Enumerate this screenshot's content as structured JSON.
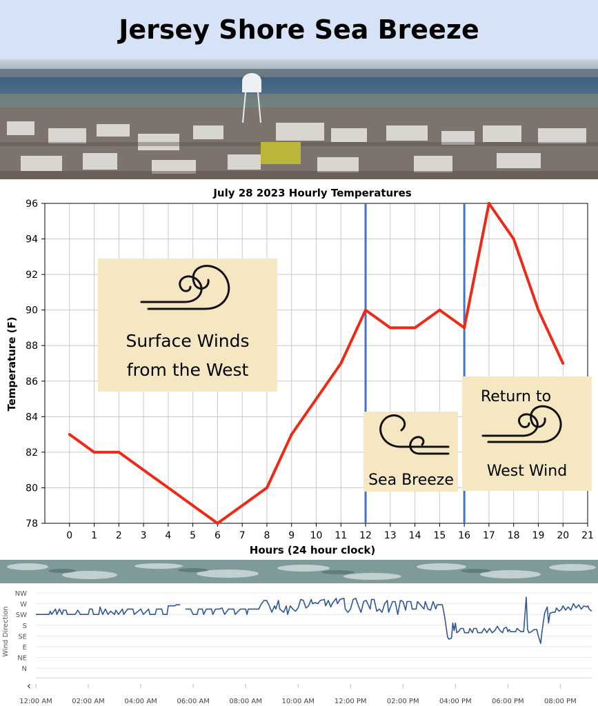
{
  "header": {
    "title": "Jersey Shore Sea Breeze"
  },
  "photo": {
    "description_icon": "town-water-tower-photo"
  },
  "chart_data": [
    {
      "type": "line",
      "title": "July 28 2023 Hourly Temperatures",
      "xlabel": "Hours (24 hour clock)",
      "ylabel": "Temperature (F)",
      "xlim": [
        -1,
        21
      ],
      "ylim": [
        78,
        96
      ],
      "xticks": [
        0,
        1,
        2,
        3,
        4,
        5,
        6,
        7,
        8,
        9,
        10,
        11,
        12,
        13,
        14,
        15,
        16,
        17,
        18,
        19,
        20,
        21
      ],
      "yticks": [
        78,
        80,
        82,
        84,
        86,
        88,
        90,
        92,
        94,
        96
      ],
      "grid": true,
      "series": [
        {
          "color": "#ee2a16",
          "x": [
            0,
            1,
            2,
            3,
            4,
            5,
            6,
            7,
            8,
            9,
            10,
            11,
            12,
            13,
            14,
            15,
            16,
            17,
            18,
            19,
            20
          ],
          "y": [
            83,
            82,
            82,
            81,
            80,
            79,
            78,
            79,
            80,
            83,
            85,
            87,
            90,
            89,
            89,
            90,
            89,
            96,
            94,
            90,
            87
          ]
        }
      ],
      "vlines": [
        {
          "x": 12,
          "color": "#4472c4"
        },
        {
          "x": 16,
          "color": "#4472c4"
        }
      ],
      "annotations": [
        {
          "text": "Surface Winds",
          "panel": "west"
        },
        {
          "text": "from the West",
          "panel": "west"
        },
        {
          "text": "Sea Breeze",
          "panel": "sea"
        },
        {
          "text": "Return to",
          "panel": "return"
        },
        {
          "text": "West Wind",
          "panel": "return"
        }
      ]
    },
    {
      "type": "line",
      "ylabel": "Wind Direction",
      "yticks": [
        "NW",
        "W",
        "SW",
        "S",
        "SE",
        "E",
        "NE",
        "N"
      ],
      "xticks": [
        "12:00 AM",
        "02:00 AM",
        "04:00 AM",
        "06:00 AM",
        "08:00 AM",
        "10:00 AM",
        "12:00 PM",
        "02:00 PM",
        "04:00 PM",
        "06:00 PM",
        "08:00 PM"
      ],
      "xlim_hours": [
        0,
        21.2
      ],
      "color": "#2e5597",
      "segments": [
        [
          [
            0,
            2.0
          ],
          [
            0.5,
            2.0
          ],
          [
            0.55,
            2.3
          ],
          [
            0.6,
            2.0
          ],
          [
            0.75,
            2.5
          ],
          [
            0.8,
            2.0
          ],
          [
            0.9,
            2.5
          ],
          [
            1.0,
            2.0
          ],
          [
            1.05,
            2.4
          ],
          [
            1.15,
            2.4
          ],
          [
            1.2,
            2.0
          ],
          [
            1.5,
            2.0
          ],
          [
            1.6,
            2.4
          ],
          [
            1.7,
            2.0
          ],
          [
            2.0,
            2.0
          ],
          [
            2.05,
            2.5
          ],
          [
            2.15,
            2.5
          ],
          [
            2.2,
            2.0
          ],
          [
            2.4,
            2.0
          ],
          [
            2.45,
            2.7
          ],
          [
            2.55,
            2.0
          ],
          [
            2.65,
            2.5
          ],
          [
            2.75,
            2.0
          ],
          [
            2.85,
            2.3
          ],
          [
            3.0,
            2.0
          ],
          [
            3.05,
            2.4
          ],
          [
            3.15,
            2.0
          ],
          [
            3.3,
            2.5
          ],
          [
            3.35,
            2.0
          ],
          [
            3.5,
            2.5
          ],
          [
            3.7,
            2.5
          ],
          [
            3.75,
            2.0
          ],
          [
            4.0,
            2.5
          ],
          [
            4.1,
            2.0
          ],
          [
            4.3,
            2.5
          ],
          [
            4.35,
            2.0
          ],
          [
            4.55,
            2.0
          ],
          [
            4.6,
            2.5
          ],
          [
            4.8,
            2.5
          ],
          [
            4.85,
            2.0
          ],
          [
            5.0,
            2.0
          ],
          [
            5.05,
            2.8
          ],
          [
            5.3,
            2.8
          ],
          [
            5.35,
            2.9
          ],
          [
            5.5,
            2.9
          ]
        ],
        [
          [
            5.7,
            2.5
          ],
          [
            5.9,
            2.5
          ],
          [
            6.0,
            2.0
          ],
          [
            6.15,
            2.0
          ],
          [
            6.2,
            2.5
          ],
          [
            6.35,
            2.5
          ],
          [
            6.4,
            2.0
          ],
          [
            6.5,
            2.5
          ],
          [
            6.7,
            2.5
          ],
          [
            6.75,
            2.0
          ],
          [
            6.85,
            2.5
          ],
          [
            7.0,
            2.5
          ],
          [
            7.1,
            2.6
          ],
          [
            7.2,
            2.0
          ],
          [
            7.35,
            2.5
          ],
          [
            7.55,
            2.5
          ],
          [
            7.6,
            2.0
          ],
          [
            7.8,
            2.5
          ],
          [
            8.0,
            2.5
          ],
          [
            8.05,
            2.0
          ],
          [
            8.1,
            2.5
          ],
          [
            8.5,
            2.5
          ],
          [
            8.6,
            3.0
          ],
          [
            8.7,
            3.3
          ],
          [
            8.8,
            3.3
          ],
          [
            8.9,
            2.8
          ],
          [
            9.0,
            2.2
          ],
          [
            9.1,
            2.8
          ],
          [
            9.15,
            2.5
          ],
          [
            9.25,
            3.3
          ],
          [
            9.3,
            2.5
          ],
          [
            9.45,
            2.2
          ],
          [
            9.55,
            2.8
          ],
          [
            9.6,
            2.0
          ],
          [
            9.7,
            2.8
          ],
          [
            9.8,
            2.5
          ],
          [
            9.9,
            2.3
          ],
          [
            10.0,
            2.6
          ],
          [
            10.1,
            3.4
          ],
          [
            10.2,
            3.3
          ],
          [
            10.3,
            2.6
          ],
          [
            10.4,
            2.8
          ],
          [
            10.5,
            3.4
          ],
          [
            10.55,
            3.0
          ],
          [
            10.65,
            3.1
          ],
          [
            10.75,
            3.0
          ],
          [
            10.85,
            3.3
          ],
          [
            11.0,
            3.4
          ],
          [
            11.05,
            2.8
          ],
          [
            11.15,
            3.3
          ],
          [
            11.25,
            2.7
          ],
          [
            11.3,
            3.0
          ],
          [
            11.45,
            3.5
          ],
          [
            11.5,
            3.0
          ],
          [
            11.6,
            3.4
          ],
          [
            11.75,
            3.5
          ],
          [
            11.8,
            2.5
          ],
          [
            11.9,
            2.2
          ],
          [
            12.0,
            2.5
          ],
          [
            12.1,
            3.4
          ],
          [
            12.2,
            3.5
          ],
          [
            12.3,
            2.8
          ],
          [
            12.4,
            2.2
          ],
          [
            12.5,
            3.2
          ],
          [
            12.6,
            3.3
          ],
          [
            12.75,
            2.5
          ],
          [
            12.8,
            3.4
          ],
          [
            12.9,
            3.4
          ],
          [
            13.0,
            2.3
          ],
          [
            13.1,
            2.5
          ],
          [
            13.2,
            2.2
          ],
          [
            13.3,
            3.0
          ],
          [
            13.4,
            3.3
          ],
          [
            13.45,
            2.2
          ],
          [
            13.6,
            3.2
          ],
          [
            13.7,
            3.2
          ],
          [
            13.8,
            2.0
          ],
          [
            13.9,
            3.3
          ],
          [
            14.0,
            3.2
          ],
          [
            14.1,
            2.4
          ],
          [
            14.15,
            3.2
          ],
          [
            14.3,
            3.2
          ],
          [
            14.35,
            2.5
          ],
          [
            14.5,
            2.5
          ],
          [
            14.55,
            3.2
          ],
          [
            14.7,
            2.8
          ],
          [
            14.8,
            2.5
          ],
          [
            14.85,
            3.2
          ],
          [
            14.95,
            2.5
          ],
          [
            15.05,
            2.4
          ],
          [
            15.15,
            3.2
          ],
          [
            15.25,
            2.5
          ],
          [
            15.3,
            2.9
          ],
          [
            15.5,
            2.9
          ],
          [
            15.55,
            2.3
          ],
          [
            15.6,
            1.6
          ],
          [
            15.7,
            -0.1
          ],
          [
            15.75,
            -0.3
          ],
          [
            15.85,
            -0.2
          ],
          [
            15.9,
            1.2
          ],
          [
            15.95,
            0.5
          ],
          [
            16.0,
            1.2
          ],
          [
            16.05,
            0.3
          ],
          [
            16.15,
            0.5
          ],
          [
            16.2,
            0.7
          ],
          [
            16.3,
            0.7
          ],
          [
            16.35,
            0.3
          ],
          [
            16.5,
            0.3
          ],
          [
            16.55,
            0.7
          ],
          [
            16.65,
            0.3
          ],
          [
            16.7,
            0.7
          ],
          [
            16.8,
            0.7
          ],
          [
            16.85,
            0.3
          ],
          [
            17.0,
            0.3
          ],
          [
            17.1,
            0.7
          ],
          [
            17.2,
            0.3
          ],
          [
            17.3,
            0.7
          ],
          [
            17.4,
            0.3
          ],
          [
            17.5,
            0.5
          ],
          [
            17.6,
            0.9
          ],
          [
            17.7,
            0.5
          ],
          [
            17.8,
            0.3
          ],
          [
            17.85,
            0.7
          ],
          [
            17.95,
            0.8
          ],
          [
            18.0,
            0.4
          ],
          [
            18.05,
            0.6
          ],
          [
            18.1,
            0.4
          ],
          [
            18.3,
            0.4
          ],
          [
            18.35,
            0.7
          ],
          [
            18.5,
            0.4
          ],
          [
            18.6,
            0.4
          ],
          [
            18.65,
            2.0
          ],
          [
            18.7,
            3.6
          ],
          [
            18.75,
            0.6
          ],
          [
            18.8,
            0.3
          ],
          [
            18.9,
            0.4
          ],
          [
            19.0,
            0.6
          ],
          [
            19.1,
            0.6
          ],
          [
            19.15,
            0.1
          ],
          [
            19.25,
            -0.7
          ],
          [
            19.3,
            0.4
          ],
          [
            19.4,
            2.1
          ],
          [
            19.5,
            2.7
          ],
          [
            19.55,
            1.2
          ],
          [
            19.6,
            2.1
          ],
          [
            19.7,
            2.2
          ],
          [
            19.8,
            2.2
          ],
          [
            19.85,
            2.6
          ],
          [
            19.95,
            2.3
          ],
          [
            20.05,
            2.5
          ],
          [
            20.1,
            2.8
          ],
          [
            20.2,
            2.4
          ],
          [
            20.3,
            2.7
          ],
          [
            20.4,
            2.4
          ],
          [
            20.5,
            3.0
          ],
          [
            20.6,
            2.6
          ],
          [
            20.7,
            2.9
          ],
          [
            20.8,
            2.5
          ],
          [
            20.9,
            2.8
          ],
          [
            21.0,
            2.7
          ],
          [
            21.05,
            2.8
          ],
          [
            21.1,
            2.5
          ],
          [
            21.2,
            2.3
          ]
        ]
      ]
    }
  ]
}
